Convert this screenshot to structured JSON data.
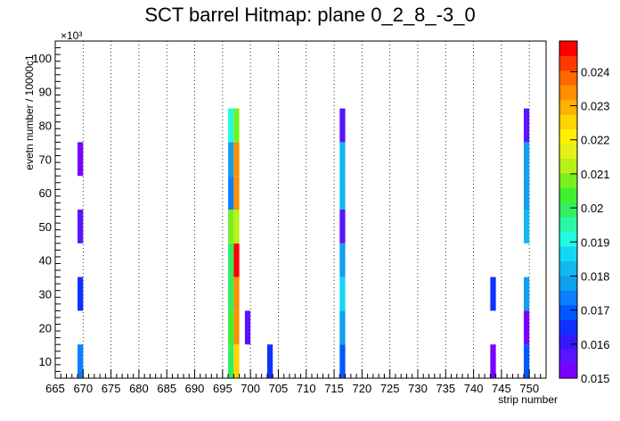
{
  "chart_data": {
    "type": "heatmap",
    "title": "SCT barrel Hitmap: plane 0_2_8_-3_0",
    "xlabel": "strip number",
    "ylabel": "evetn number / 10000c1",
    "y_exponent_label": "×10³",
    "x_range": [
      665,
      753
    ],
    "y_range": [
      5,
      105
    ],
    "y_scale_factor": 1000,
    "x_ticks": [
      665,
      670,
      675,
      680,
      685,
      690,
      695,
      700,
      705,
      710,
      715,
      720,
      725,
      730,
      735,
      740,
      745,
      750
    ],
    "y_ticks": [
      10,
      20,
      30,
      40,
      50,
      60,
      70,
      80,
      90,
      100
    ],
    "x_grid": true,
    "y_grid": false,
    "z_range": [
      0.015,
      0.0249
    ],
    "z_ticks": [
      "0.015",
      "0.016",
      "0.017",
      "0.018",
      "0.019",
      "0.02",
      "0.021",
      "0.022",
      "0.023",
      "0.024"
    ],
    "palette": [
      "#7a00ff",
      "#5a14ff",
      "#3618ff",
      "#1030ff",
      "#0058ff",
      "#0a80ff",
      "#10a0f0",
      "#12b8f0",
      "#12d8f8",
      "#22fbe0",
      "#28f7a8",
      "#30ef60",
      "#3ef030",
      "#78f020",
      "#b8f018",
      "#e6f018",
      "#fff000",
      "#ffd400",
      "#ffb000",
      "#ff8e00",
      "#ff6a00",
      "#ff3a00",
      "#ff0000"
    ],
    "cells": [
      {
        "x": 669,
        "y": [
          5,
          15
        ],
        "z": 0.0172
      },
      {
        "x": 669,
        "y": [
          25,
          35
        ],
        "z": 0.0165
      },
      {
        "x": 669,
        "y": [
          45,
          55
        ],
        "z": 0.0156
      },
      {
        "x": 669,
        "y": [
          65,
          75
        ],
        "z": 0.0154
      },
      {
        "x": 696,
        "y": [
          5,
          15
        ],
        "z": 0.02
      },
      {
        "x": 696,
        "y": [
          15,
          25
        ],
        "z": 0.0203
      },
      {
        "x": 696,
        "y": [
          25,
          35
        ],
        "z": 0.02
      },
      {
        "x": 696,
        "y": [
          35,
          45
        ],
        "z": 0.0201
      },
      {
        "x": 696,
        "y": [
          45,
          55
        ],
        "z": 0.0206
      },
      {
        "x": 696,
        "y": [
          55,
          65
        ],
        "z": 0.0175
      },
      {
        "x": 696,
        "y": [
          65,
          75
        ],
        "z": 0.0176
      },
      {
        "x": 696,
        "y": [
          75,
          85
        ],
        "z": 0.019
      },
      {
        "x": 697,
        "y": [
          5,
          15
        ],
        "z": 0.0225
      },
      {
        "x": 697,
        "y": [
          15,
          25
        ],
        "z": 0.0232
      },
      {
        "x": 697,
        "y": [
          25,
          35
        ],
        "z": 0.0235
      },
      {
        "x": 697,
        "y": [
          35,
          45
        ],
        "z": 0.0246
      },
      {
        "x": 697,
        "y": [
          45,
          55
        ],
        "z": 0.0211
      },
      {
        "x": 697,
        "y": [
          55,
          65
        ],
        "z": 0.0234
      },
      {
        "x": 697,
        "y": [
          65,
          75
        ],
        "z": 0.0233
      },
      {
        "x": 697,
        "y": [
          75,
          85
        ],
        "z": 0.021
      },
      {
        "x": 699,
        "y": [
          15,
          25
        ],
        "z": 0.0156
      },
      {
        "x": 703,
        "y": [
          5,
          15
        ],
        "z": 0.0165
      },
      {
        "x": 716,
        "y": [
          5,
          15
        ],
        "z": 0.017
      },
      {
        "x": 716,
        "y": [
          15,
          25
        ],
        "z": 0.0176
      },
      {
        "x": 716,
        "y": [
          25,
          35
        ],
        "z": 0.0187
      },
      {
        "x": 716,
        "y": [
          35,
          45
        ],
        "z": 0.0176
      },
      {
        "x": 716,
        "y": [
          45,
          55
        ],
        "z": 0.0156
      },
      {
        "x": 716,
        "y": [
          55,
          65
        ],
        "z": 0.0181
      },
      {
        "x": 716,
        "y": [
          65,
          75
        ],
        "z": 0.0181
      },
      {
        "x": 716,
        "y": [
          75,
          85
        ],
        "z": 0.0158
      },
      {
        "x": 743,
        "y": [
          5,
          15
        ],
        "z": 0.0152
      },
      {
        "x": 743,
        "y": [
          25,
          35
        ],
        "z": 0.0165
      },
      {
        "x": 749,
        "y": [
          5,
          15
        ],
        "z": 0.017
      },
      {
        "x": 749,
        "y": [
          15,
          25
        ],
        "z": 0.0153
      },
      {
        "x": 749,
        "y": [
          25,
          35
        ],
        "z": 0.0176
      },
      {
        "x": 749,
        "y": [
          45,
          55
        ],
        "z": 0.0184
      },
      {
        "x": 749,
        "y": [
          55,
          65
        ],
        "z": 0.018
      },
      {
        "x": 749,
        "y": [
          65,
          75
        ],
        "z": 0.018
      },
      {
        "x": 749,
        "y": [
          75,
          85
        ],
        "z": 0.0156
      }
    ]
  }
}
